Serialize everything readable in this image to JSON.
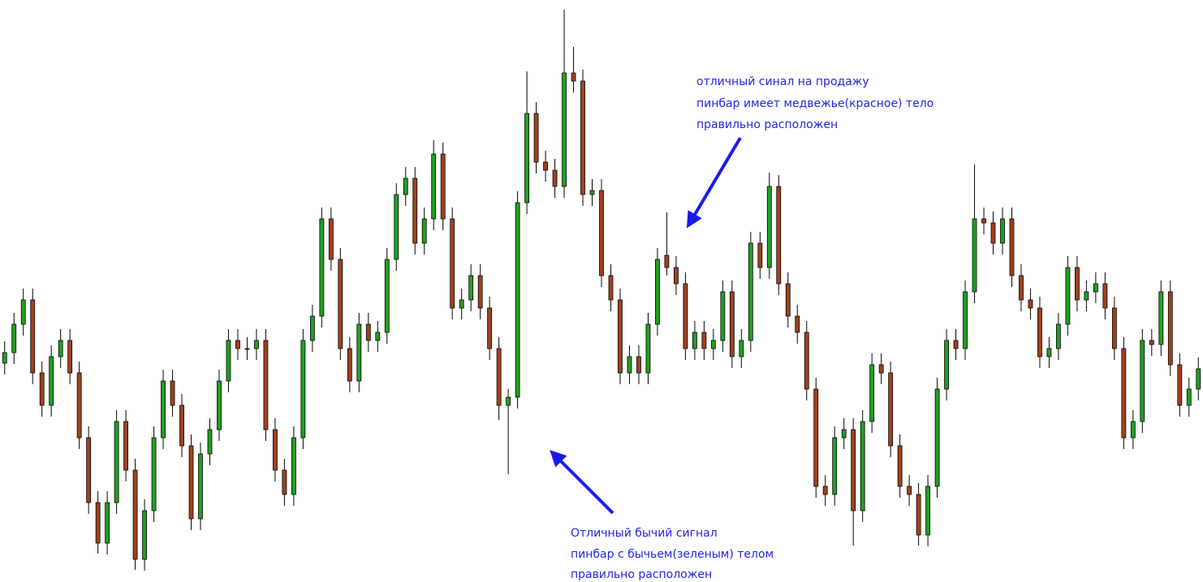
{
  "chart_data": {
    "type": "candlestick",
    "ylim": [
      0,
      718
    ],
    "bull_color": "#22a022",
    "bear_color": "#a0421f",
    "wick_color": "#000000",
    "open": [
      270,
      283,
      318,
      348,
      258,
      218,
      278,
      298,
      258,
      178,
      98,
      48,
      98,
      198,
      138,
      28,
      88,
      178,
      248,
      218,
      168,
      78,
      158,
      188,
      248,
      298,
      288,
      288,
      298,
      188,
      138,
      108,
      178,
      298,
      328,
      448,
      398,
      288,
      248,
      318,
      298,
      308,
      398,
      478,
      498,
      418,
      448,
      528,
      448,
      338,
      348,
      378,
      338,
      288,
      218,
      228,
      468,
      578,
      518,
      508,
      488,
      628,
      618,
      478,
      483,
      378,
      348,
      258,
      278,
      258,
      318,
      403,
      388,
      368,
      288,
      308,
      288,
      298,
      358,
      278,
      298,
      418,
      388,
      488,
      368,
      328,
      308,
      238,
      118,
      108,
      178,
      188,
      88,
      198,
      268,
      258,
      168,
      118,
      108,
      58,
      118,
      238,
      298,
      288,
      358,
      448,
      443,
      418,
      448,
      378,
      348,
      338,
      278,
      288,
      318,
      388,
      348,
      358,
      368,
      338,
      288,
      178,
      198,
      298,
      293,
      358,
      268,
      218,
      238
    ],
    "high": [
      297,
      332,
      362,
      362,
      272,
      292,
      312,
      312,
      272,
      192,
      112,
      112,
      212,
      212,
      152,
      102,
      192,
      262,
      262,
      232,
      182,
      172,
      202,
      262,
      312,
      312,
      302,
      312,
      312,
      202,
      152,
      192,
      312,
      342,
      462,
      462,
      412,
      302,
      332,
      332,
      322,
      412,
      492,
      512,
      512,
      462,
      545,
      542,
      462,
      362,
      392,
      392,
      352,
      302,
      238,
      482,
      630,
      592,
      532,
      522,
      706,
      660,
      632,
      497,
      497,
      392,
      362,
      292,
      292,
      332,
      412,
      456,
      402,
      382,
      322,
      322,
      312,
      372,
      372,
      312,
      432,
      432,
      505,
      502,
      382,
      342,
      322,
      252,
      132,
      192,
      202,
      202,
      212,
      282,
      282,
      272,
      182,
      132,
      122,
      132,
      252,
      312,
      312,
      372,
      515,
      462,
      457,
      462,
      462,
      392,
      362,
      352,
      302,
      332,
      402,
      402,
      372,
      382,
      382,
      352,
      302,
      212,
      312,
      312,
      372,
      372,
      282,
      252,
      277
    ],
    "low": [
      256,
      269,
      304,
      244,
      204,
      204,
      264,
      244,
      164,
      84,
      35,
      34,
      84,
      124,
      15,
      14,
      74,
      164,
      204,
      154,
      64,
      64,
      144,
      174,
      234,
      274,
      274,
      274,
      174,
      124,
      94,
      94,
      164,
      284,
      314,
      384,
      274,
      234,
      234,
      284,
      284,
      294,
      384,
      464,
      404,
      404,
      434,
      434,
      324,
      324,
      334,
      324,
      274,
      200,
      133,
      214,
      454,
      504,
      494,
      474,
      474,
      604,
      464,
      464,
      364,
      334,
      244,
      244,
      244,
      244,
      304,
      378,
      354,
      274,
      274,
      274,
      274,
      284,
      264,
      264,
      284,
      374,
      374,
      354,
      314,
      294,
      224,
      104,
      94,
      94,
      164,
      45,
      74,
      184,
      244,
      154,
      104,
      94,
      45,
      44,
      104,
      224,
      274,
      274,
      344,
      429,
      404,
      404,
      364,
      334,
      324,
      264,
      264,
      274,
      304,
      334,
      334,
      344,
      324,
      274,
      164,
      164,
      184,
      279,
      279,
      254,
      204,
      204,
      224
    ],
    "close": [
      283,
      318,
      348,
      258,
      218,
      278,
      298,
      258,
      178,
      98,
      48,
      98,
      198,
      138,
      28,
      88,
      178,
      248,
      218,
      168,
      78,
      158,
      188,
      248,
      298,
      288,
      288,
      298,
      188,
      138,
      108,
      178,
      298,
      328,
      448,
      398,
      288,
      248,
      318,
      298,
      308,
      398,
      478,
      498,
      418,
      448,
      528,
      448,
      338,
      348,
      378,
      338,
      288,
      218,
      228,
      468,
      578,
      518,
      508,
      488,
      628,
      618,
      478,
      483,
      378,
      348,
      258,
      278,
      258,
      318,
      398,
      388,
      368,
      288,
      308,
      288,
      298,
      358,
      278,
      298,
      418,
      388,
      488,
      368,
      328,
      308,
      238,
      118,
      108,
      178,
      188,
      88,
      198,
      268,
      258,
      168,
      118,
      108,
      58,
      118,
      238,
      298,
      288,
      358,
      448,
      443,
      418,
      448,
      378,
      348,
      338,
      278,
      288,
      318,
      388,
      348,
      358,
      368,
      338,
      288,
      178,
      198,
      298,
      293,
      358,
      268,
      218,
      238,
      263
    ],
    "annotations": [
      {
        "lines": [
          "отличный синал на продажу",
          "пинбар имеет медвежье(красное) тело",
          "правильно расположен"
        ]
      },
      {
        "lines": [
          "Отличный бычий сигнал",
          "пинбар с бычьем(зеленым) телом",
          "правильно расположен"
        ]
      }
    ]
  }
}
